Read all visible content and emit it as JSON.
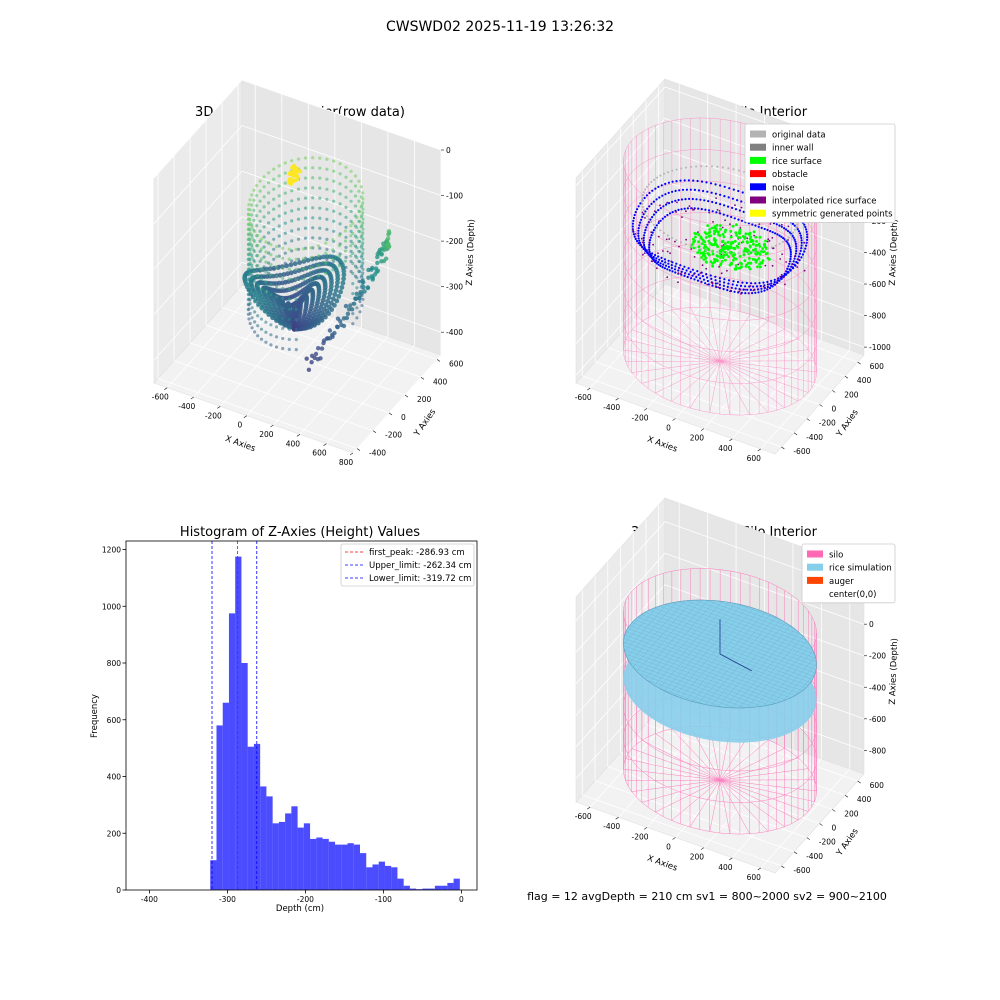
{
  "figure": {
    "suptitle": "CWSWD02 2025-11-19 13:26:32",
    "footer": "flag = 12  avgDepth = 210 cm  sv1 = 800~2000  sv2 = 900~2100",
    "colors": {
      "viridis": [
        "#440154",
        "#3b528b",
        "#21918c",
        "#5ec962",
        "#fde725"
      ],
      "silo_wire": "#ff69b4",
      "rice": "#87ceeb",
      "histogram": "#0000ff",
      "first_peak_line": "#ff0000",
      "limit_line": "#0000ff"
    }
  },
  "chart_data": [
    {
      "type": "scatter3d",
      "title": "3D Plot of Silo Interior(row data)",
      "xlabel": "X Axies",
      "ylabel": "Y Axies",
      "zlabel": "Z Axies (Depth)",
      "xlim": [
        -700,
        800
      ],
      "ylim": [
        -450,
        650
      ],
      "zlim": [
        -450,
        0
      ],
      "xticks": [
        -600,
        -400,
        -200,
        0,
        200,
        400,
        600,
        800
      ],
      "yticks": [
        -400,
        -200,
        0,
        200,
        400,
        600
      ],
      "zticks": [
        0,
        -100,
        -200,
        -300,
        -400
      ],
      "colormap": "viridis"
    },
    {
      "type": "scatter3d",
      "title": "3D classify of Silo Interior",
      "xlabel": "X Axies",
      "ylabel": "Y Axies",
      "zlabel": "Z Axies (Depth)",
      "xlim": [
        -700,
        700
      ],
      "ylim": [
        -700,
        700
      ],
      "zlim": [
        -1050,
        250
      ],
      "xticks": [
        -600,
        -400,
        -200,
        0,
        200,
        400,
        600
      ],
      "yticks": [
        -600,
        -400,
        -200,
        0,
        200,
        400,
        600
      ],
      "zticks": [
        200,
        0,
        -200,
        -400,
        -600,
        -800,
        -1000
      ],
      "legend_position": "top-right",
      "legend": [
        {
          "label": "original data",
          "color": "#b3b3b3"
        },
        {
          "label": "inner wall",
          "color": "#808080"
        },
        {
          "label": "rice surface",
          "color": "#00ff00"
        },
        {
          "label": "obstacle",
          "color": "#ff0000"
        },
        {
          "label": "noise",
          "color": "#0000ff"
        },
        {
          "label": "interpolated rice surface",
          "color": "#800080"
        },
        {
          "label": "symmetric generated points",
          "color": "#ffff00"
        }
      ]
    },
    {
      "type": "bar",
      "title": "Histogram of Z-Axies (Height) Values",
      "xlabel": "Depth (cm)",
      "ylabel": "Frequency",
      "xlim": [
        -430,
        20
      ],
      "ylim": [
        0,
        1230
      ],
      "xticks": [
        -400,
        -300,
        -200,
        -100,
        0
      ],
      "yticks": [
        0,
        200,
        400,
        600,
        800,
        1000,
        1200
      ],
      "bin_width": 8,
      "bins": [
        [
          -322,
          105
        ],
        [
          -314,
          580
        ],
        [
          -306,
          660
        ],
        [
          -298,
          975
        ],
        [
          -290,
          1175
        ],
        [
          -282,
          800
        ],
        [
          -274,
          505
        ],
        [
          -266,
          515
        ],
        [
          -258,
          365
        ],
        [
          -250,
          330
        ],
        [
          -242,
          235
        ],
        [
          -234,
          240
        ],
        [
          -226,
          270
        ],
        [
          -218,
          295
        ],
        [
          -210,
          220
        ],
        [
          -202,
          235
        ],
        [
          -194,
          180
        ],
        [
          -186,
          185
        ],
        [
          -178,
          180
        ],
        [
          -170,
          170
        ],
        [
          -162,
          160
        ],
        [
          -154,
          160
        ],
        [
          -146,
          165
        ],
        [
          -138,
          160
        ],
        [
          -130,
          130
        ],
        [
          -122,
          80
        ],
        [
          -114,
          90
        ],
        [
          -106,
          100
        ],
        [
          -98,
          85
        ],
        [
          -90,
          80
        ],
        [
          -82,
          40
        ],
        [
          -74,
          15
        ],
        [
          -66,
          5
        ],
        [
          -58,
          3
        ],
        [
          -50,
          5
        ],
        [
          -42,
          5
        ],
        [
          -34,
          15
        ],
        [
          -26,
          15
        ],
        [
          -18,
          25
        ],
        [
          -10,
          40
        ]
      ],
      "vlines": [
        {
          "label": "first_peak: -286.93 cm",
          "x": -286.93,
          "color": "#ff0000"
        },
        {
          "label": "Upper_limit: -262.34 cm",
          "x": -262.34,
          "color": "#0000ff"
        },
        {
          "label": "Lower_limit: -319.72 cm",
          "x": -319.72,
          "color": "#0000ff"
        }
      ],
      "legend_position": "top-right"
    },
    {
      "type": "surface3d",
      "title": "3D simulation of Silo Interior",
      "xlabel": "X Axies",
      "ylabel": "Y Axies",
      "zlabel": "Z Axies (Depth)",
      "xlim": [
        -700,
        700
      ],
      "ylim": [
        -700,
        700
      ],
      "zlim": [
        -950,
        350
      ],
      "xticks": [
        -600,
        -400,
        -200,
        0,
        200,
        400,
        600
      ],
      "yticks": [
        -600,
        -400,
        -200,
        0,
        200,
        400,
        600
      ],
      "zticks": [
        200,
        0,
        -200,
        -400,
        -600,
        -800
      ],
      "legend_position": "top-right",
      "legend": [
        {
          "label": "silo",
          "color": "#ff69b4"
        },
        {
          "label": "rice simulation",
          "color": "#87ceeb"
        },
        {
          "label": "auger",
          "color": "#ff4500"
        },
        {
          "label": "center(0,0)",
          "color": ""
        }
      ]
    }
  ]
}
